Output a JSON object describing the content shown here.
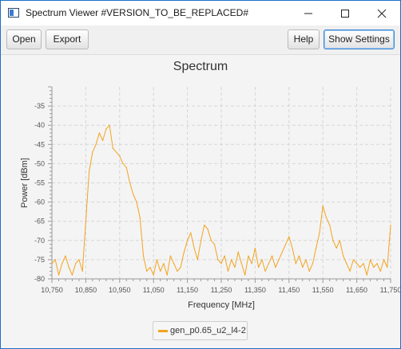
{
  "window": {
    "title": "Spectrum Viewer #VERSION_TO_BE_REPLACED#",
    "icon": "app-window-icon",
    "controls": [
      "minimize-icon",
      "maximize-icon",
      "close-icon"
    ]
  },
  "toolbar": {
    "open_label": "Open",
    "export_label": "Export",
    "help_label": "Help",
    "settings_label": "Show Settings"
  },
  "colors": {
    "series": "#f3a31f",
    "window_border": "#1a6fc9",
    "focus": "#3b86d6"
  },
  "chart_data": {
    "type": "line",
    "title": "Spectrum",
    "xlabel": "Frequency [MHz]",
    "ylabel": "Power [dBm]",
    "xlim": [
      10750,
      11750
    ],
    "ylim": [
      -80,
      -30
    ],
    "x_ticks": [
      "10,750",
      "10,850",
      "10,950",
      "11,050",
      "11,150",
      "11,250",
      "11,350",
      "11,450",
      "11,550",
      "11,650",
      "11,750"
    ],
    "y_ticks": [
      "-35",
      "-40",
      "-45",
      "-50",
      "-55",
      "-60",
      "-65",
      "-70",
      "-75",
      "-80"
    ],
    "grid": true,
    "legend_position": "bottom",
    "series": [
      {
        "name": "gen_p0.65_u2_l4-2",
        "x": [
          10750,
          10760,
          10770,
          10780,
          10790,
          10800,
          10810,
          10820,
          10830,
          10840,
          10850,
          10860,
          10870,
          10880,
          10890,
          10900,
          10910,
          10920,
          10930,
          10940,
          10950,
          10960,
          10970,
          10980,
          10990,
          11000,
          11010,
          11020,
          11030,
          11040,
          11050,
          11060,
          11070,
          11080,
          11090,
          11100,
          11110,
          11120,
          11130,
          11140,
          11150,
          11160,
          11170,
          11180,
          11190,
          11200,
          11210,
          11220,
          11230,
          11240,
          11250,
          11260,
          11270,
          11280,
          11290,
          11300,
          11310,
          11320,
          11330,
          11340,
          11350,
          11360,
          11370,
          11380,
          11390,
          11400,
          11410,
          11420,
          11430,
          11440,
          11450,
          11460,
          11470,
          11480,
          11490,
          11500,
          11510,
          11520,
          11530,
          11540,
          11550,
          11560,
          11570,
          11580,
          11590,
          11600,
          11610,
          11620,
          11630,
          11640,
          11650,
          11660,
          11670,
          11680,
          11690,
          11700,
          11710,
          11720,
          11730,
          11740,
          11750
        ],
        "values": [
          -76,
          -75,
          -79,
          -76,
          -74,
          -77,
          -79,
          -76,
          -75,
          -78,
          -65,
          -52,
          -47,
          -45,
          -42,
          -44,
          -41,
          -40,
          -46,
          -47,
          -48,
          -50,
          -51,
          -55,
          -58,
          -60,
          -64,
          -74,
          -78,
          -77,
          -79,
          -75,
          -78,
          -76,
          -79,
          -74,
          -76,
          -78,
          -77,
          -73,
          -70,
          -68,
          -72,
          -75,
          -70,
          -66,
          -67,
          -70,
          -71,
          -75,
          -76,
          -74,
          -78,
          -75,
          -77,
          -73,
          -76,
          -79,
          -74,
          -76,
          -72,
          -77,
          -75,
          -78,
          -76,
          -74,
          -77,
          -75,
          -73,
          -71,
          -69,
          -72,
          -76,
          -74,
          -77,
          -75,
          -78,
          -76,
          -72,
          -68,
          -61,
          -64,
          -66,
          -70,
          -72,
          -70,
          -74,
          -76,
          -78,
          -75,
          -76,
          -77,
          -76,
          -79,
          -75,
          -77,
          -76,
          -78,
          -75,
          -77,
          -66
        ]
      }
    ]
  }
}
